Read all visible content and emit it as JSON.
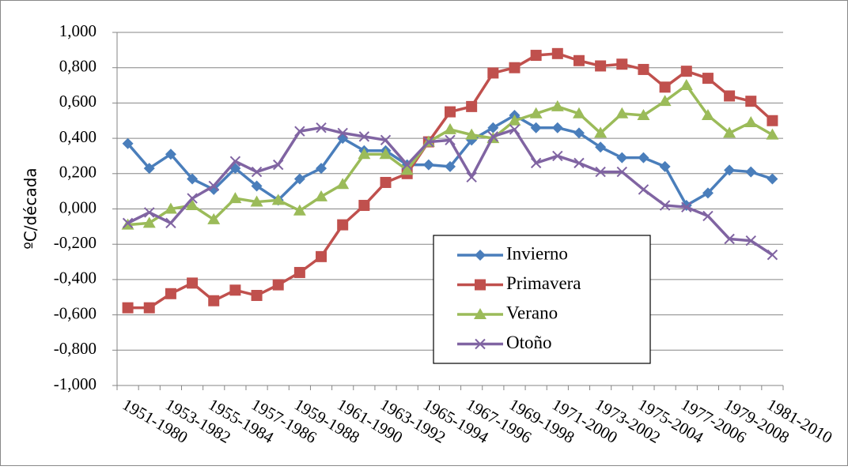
{
  "chart_data": {
    "type": "line",
    "y_label": "ºC/década",
    "categories": [
      "1951-1980",
      null,
      "1953-1982",
      null,
      "1955-1984",
      null,
      "1957-1986",
      null,
      "1959-1988",
      null,
      "1961-1990",
      null,
      "1963-1992",
      null,
      "1965-1994",
      null,
      "1967-1996",
      null,
      "1969-1998",
      null,
      "1971-2000",
      null,
      "1973-2002",
      null,
      "1975-2004",
      null,
      "1977-2006",
      null,
      "1979-2008",
      null,
      "1981-2010"
    ],
    "series": [
      {
        "name": "Invierno",
        "color": "#4a7ebb",
        "marker": "diamond",
        "values": [
          0.37,
          0.23,
          0.31,
          0.17,
          0.11,
          0.23,
          0.13,
          0.05,
          0.17,
          0.23,
          0.4,
          0.33,
          0.33,
          0.25,
          0.25,
          0.24,
          0.39,
          0.46,
          0.53,
          0.46,
          0.46,
          0.43,
          0.35,
          0.29,
          0.29,
          0.24,
          0.02,
          0.09,
          0.22,
          0.21,
          0.17
        ]
      },
      {
        "name": "Primavera",
        "color": "#c0504d",
        "marker": "square",
        "values": [
          -0.56,
          -0.56,
          -0.48,
          -0.42,
          -0.52,
          -0.46,
          -0.49,
          -0.43,
          -0.36,
          -0.27,
          -0.09,
          0.02,
          0.15,
          0.2,
          0.38,
          0.55,
          0.58,
          0.77,
          0.8,
          0.87,
          0.88,
          0.84,
          0.81,
          0.82,
          0.79,
          0.69,
          0.78,
          0.74,
          0.64,
          0.61,
          0.5
        ]
      },
      {
        "name": "Verano",
        "color": "#9bbb59",
        "marker": "triangle",
        "values": [
          -0.09,
          -0.08,
          0.0,
          0.02,
          -0.06,
          0.06,
          0.04,
          0.05,
          -0.01,
          0.07,
          0.14,
          0.31,
          0.31,
          0.22,
          0.38,
          0.45,
          0.42,
          0.4,
          0.5,
          0.54,
          0.58,
          0.54,
          0.43,
          0.54,
          0.53,
          0.61,
          0.7,
          0.53,
          0.43,
          0.49,
          0.42
        ]
      },
      {
        "name": "Otoño",
        "color": "#8064a2",
        "marker": "cross",
        "values": [
          -0.08,
          -0.02,
          -0.08,
          0.06,
          0.13,
          0.27,
          0.21,
          0.25,
          0.44,
          0.46,
          0.43,
          0.41,
          0.39,
          0.25,
          0.38,
          0.39,
          0.18,
          0.41,
          0.45,
          0.26,
          0.3,
          0.26,
          0.21,
          0.21,
          0.11,
          0.02,
          0.01,
          -0.04,
          -0.17,
          -0.18,
          -0.26
        ]
      }
    ],
    "ylim": [
      -1,
      1
    ],
    "yticks": [
      {
        "value": -1,
        "label": "-1,000"
      },
      {
        "value": -0.8,
        "label": "-0,800"
      },
      {
        "value": -0.6,
        "label": "-0,600"
      },
      {
        "value": -0.4,
        "label": "-0,400"
      },
      {
        "value": -0.2,
        "label": "-0,200"
      },
      {
        "value": 0,
        "label": "0,000"
      },
      {
        "value": 0.2,
        "label": "0,200"
      },
      {
        "value": 0.4,
        "label": "0,400"
      },
      {
        "value": 0.6,
        "label": "0,600"
      },
      {
        "value": 0.8,
        "label": "0,800"
      },
      {
        "value": 1,
        "label": "1,000"
      }
    ],
    "grid": true,
    "legend": "center-right"
  }
}
